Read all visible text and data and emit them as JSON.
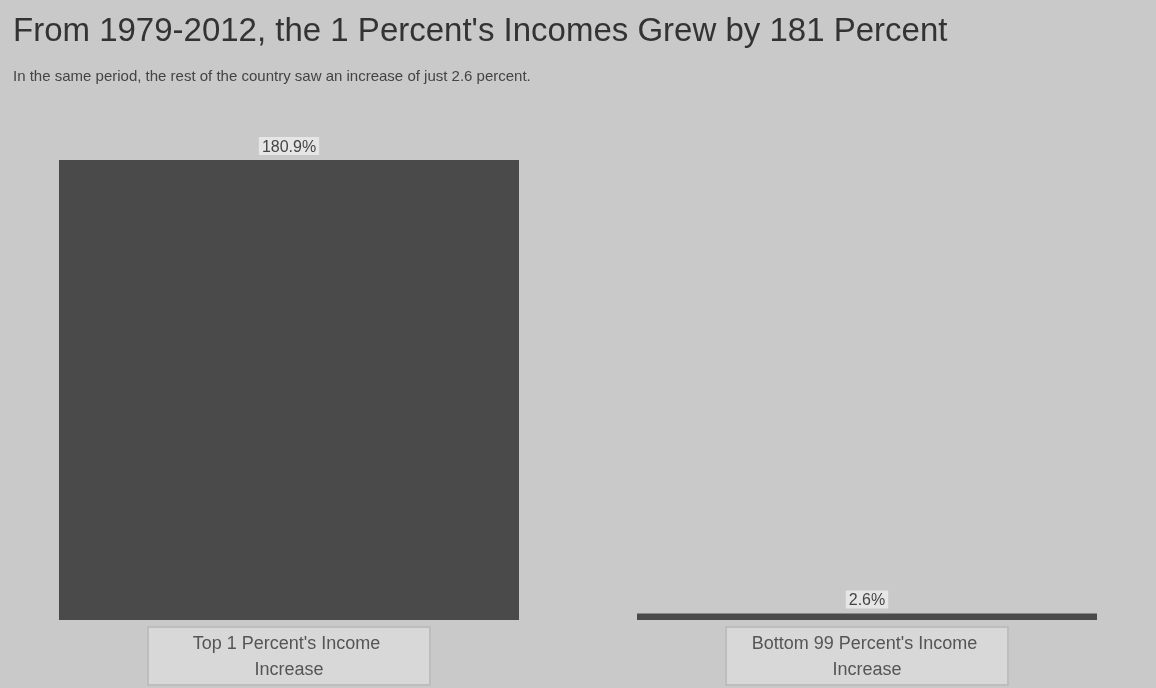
{
  "chart_data": {
    "type": "bar",
    "title": "From 1979-2012, the 1 Percent's Incomes Grew by 181 Percent",
    "subtitle": "In the same period, the rest of the country saw an increase of just 2.6 percent.",
    "categories": [
      "Top 1 Percent's Income Increase",
      "Bottom 99 Percent's Income Increase"
    ],
    "values": [
      180.9,
      2.6
    ],
    "value_labels": [
      "180.9%",
      "2.6%"
    ],
    "color": "#4a4a4a",
    "tick_labels": "x"
  }
}
